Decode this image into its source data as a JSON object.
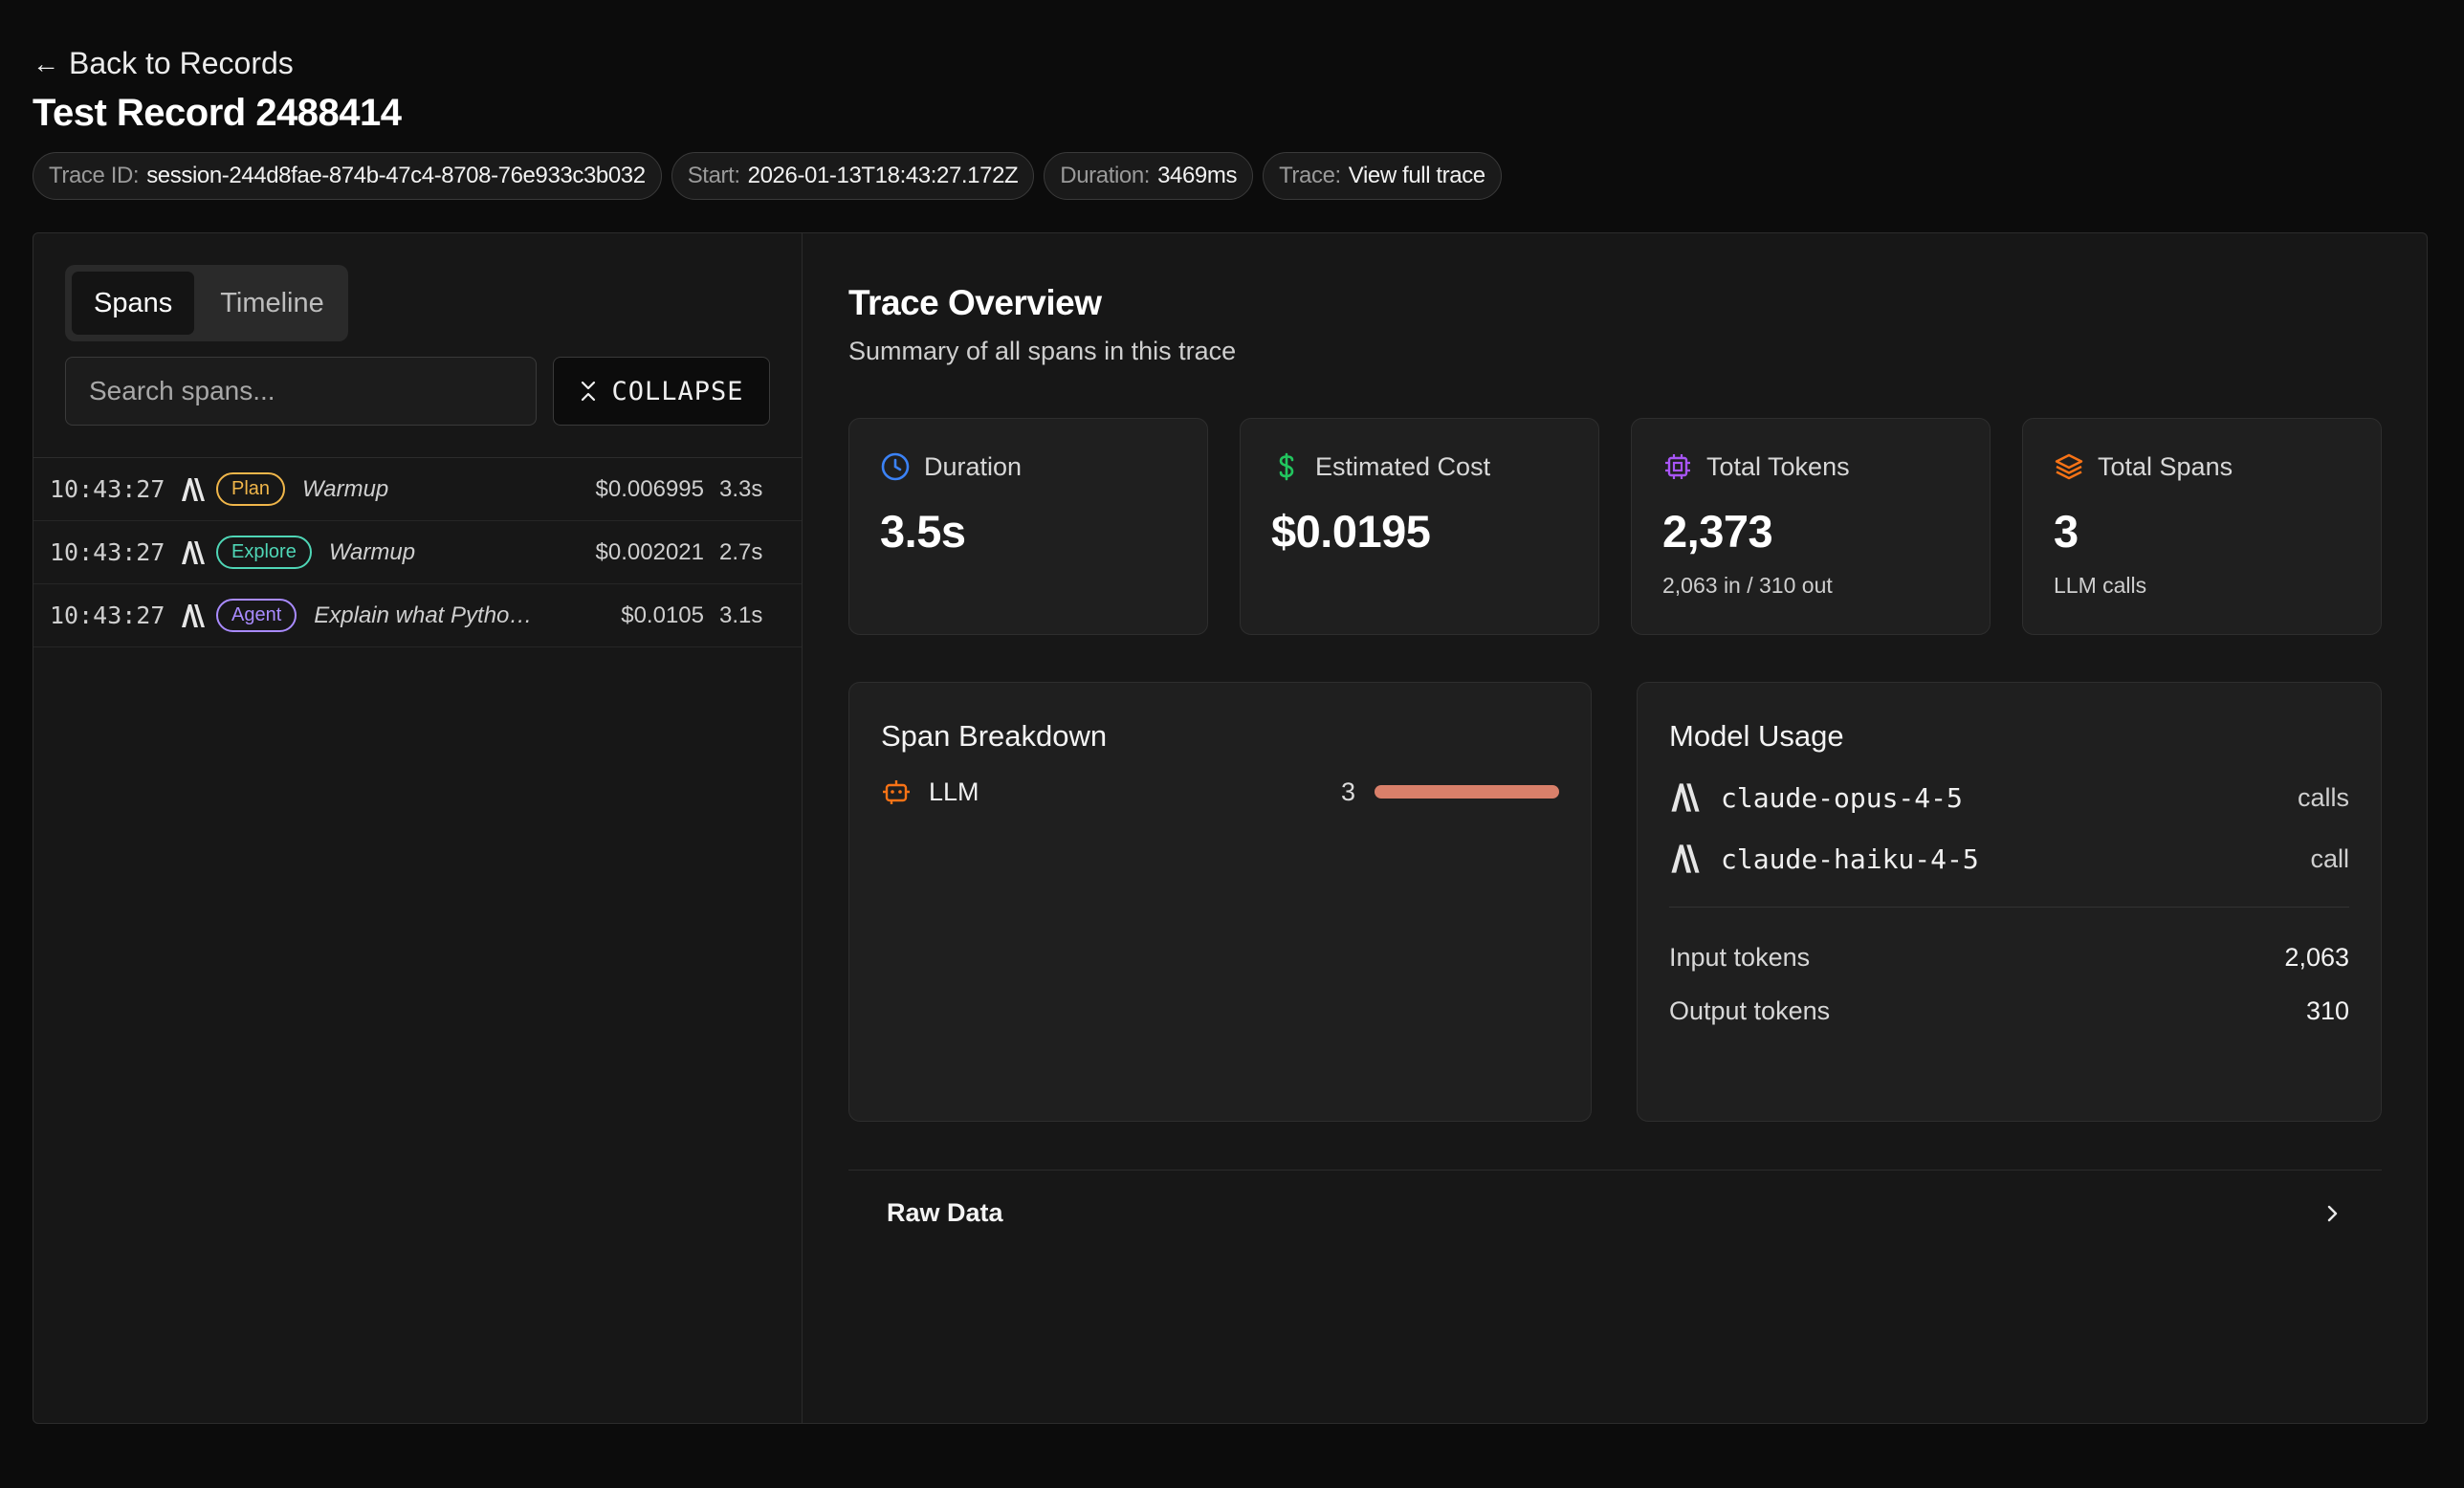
{
  "header": {
    "back_label": "Back to Records",
    "title": "Test Record 2488414",
    "meta": [
      {
        "key": "Trace ID:",
        "value": "session-244d8fae-874b-47c4-8708-76e933c3b032"
      },
      {
        "key": "Start:",
        "value": "2026-01-13T18:43:27.172Z"
      },
      {
        "key": "Duration:",
        "value": "3469ms"
      },
      {
        "key": "Trace:",
        "value": "View full trace"
      }
    ]
  },
  "left": {
    "tabs": [
      "Spans",
      "Timeline"
    ],
    "active_tab": "Spans",
    "search": {
      "placeholder": "Search spans...",
      "value": ""
    },
    "collapse_label": "COLLAPSE",
    "spans": [
      {
        "time": "10:43:27",
        "badge": "Plan",
        "name": "Warmup",
        "cost": "$0.006995",
        "duration": "3.3s"
      },
      {
        "time": "10:43:27",
        "badge": "Explore",
        "name": "Warmup",
        "cost": "$0.002021",
        "duration": "2.7s"
      },
      {
        "time": "10:43:27",
        "badge": "Agent",
        "name": "Explain what Python ...",
        "cost": "$0.0105",
        "duration": "3.1s"
      }
    ]
  },
  "overview": {
    "title": "Trace Overview",
    "subtitle": "Summary of all spans in this trace",
    "stats": {
      "duration": {
        "label": "Duration",
        "value": "3.5s"
      },
      "cost": {
        "label": "Estimated Cost",
        "value": "$0.0195"
      },
      "tokens": {
        "label": "Total Tokens",
        "value": "2,373",
        "sub": "2,063 in / 310 out"
      },
      "spans": {
        "label": "Total Spans",
        "value": "3",
        "sub": "LLM calls"
      }
    },
    "span_breakdown": {
      "title": "Span Breakdown",
      "label": "LLM",
      "count": "3",
      "fraction": 1.0
    },
    "model_usage": {
      "title": "Model Usage",
      "models": [
        {
          "name": "claude-opus-4-5",
          "unit": "calls"
        },
        {
          "name": "claude-haiku-4-5",
          "unit": "call"
        }
      ],
      "input_label": "Input tokens",
      "input_value": "2,063",
      "output_label": "Output tokens",
      "output_value": "310"
    },
    "raw_data_label": "Raw Data"
  },
  "colors": {
    "clock": "#3b82f6",
    "dollar": "#22c55e",
    "chip": "#a855f7",
    "layers": "#f97316",
    "bar": "#d9806a"
  },
  "icons": {
    "back": "arrow-left-icon",
    "collapse": "collapse-icon",
    "duration": "clock-icon",
    "cost": "dollar-icon",
    "tokens": "chip-icon",
    "spans": "layers-icon",
    "llm": "bot-icon",
    "model": "anthropic-logo-icon",
    "raw": "chevron-right-icon"
  }
}
